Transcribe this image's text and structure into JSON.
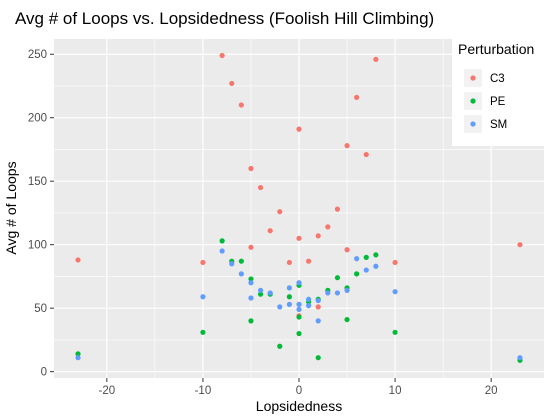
{
  "chart_data": {
    "type": "scatter",
    "title": "Avg # of Loops vs. Lopsidedness (Foolish Hill Climbing)",
    "xlabel": "Lopsidedness",
    "ylabel": "Avg # of Loops",
    "xlim": [
      -25.5,
      25.5
    ],
    "ylim": [
      -5,
      262
    ],
    "x_ticks": [
      -20,
      -10,
      0,
      10,
      20
    ],
    "y_ticks": [
      0,
      50,
      100,
      150,
      200,
      250
    ],
    "grid": true,
    "legend_title": "Perturbation",
    "legend_position": "top-right",
    "colors": {
      "panel": "#ebebeb",
      "grid": "#ffffff"
    },
    "series": [
      {
        "name": "C3",
        "color": "#f8766d",
        "points": [
          [
            -23,
            88
          ],
          [
            -10,
            86
          ],
          [
            -8,
            249
          ],
          [
            -7,
            227
          ],
          [
            -6,
            210
          ],
          [
            -5,
            160
          ],
          [
            -5,
            98
          ],
          [
            -4,
            145
          ],
          [
            -3,
            111
          ],
          [
            -2,
            126
          ],
          [
            -1,
            86
          ],
          [
            0,
            191
          ],
          [
            0,
            105
          ],
          [
            0,
            44
          ],
          [
            1,
            87
          ],
          [
            2,
            107
          ],
          [
            2,
            51
          ],
          [
            3,
            114
          ],
          [
            4,
            128
          ],
          [
            5,
            178
          ],
          [
            5,
            96
          ],
          [
            6,
            216
          ],
          [
            7,
            171
          ],
          [
            8,
            246
          ],
          [
            10,
            86
          ],
          [
            23,
            100
          ]
        ]
      },
      {
        "name": "PE",
        "color": "#00ba38",
        "points": [
          [
            -23,
            14
          ],
          [
            -10,
            31
          ],
          [
            -8,
            103
          ],
          [
            -7,
            87
          ],
          [
            -6,
            87
          ],
          [
            -5,
            73
          ],
          [
            -5,
            40
          ],
          [
            -4,
            61
          ],
          [
            -3,
            61
          ],
          [
            -2,
            20
          ],
          [
            -1,
            59
          ],
          [
            0,
            68
          ],
          [
            0,
            43
          ],
          [
            0,
            30
          ],
          [
            1,
            55
          ],
          [
            2,
            57
          ],
          [
            2,
            11
          ],
          [
            3,
            64
          ],
          [
            4,
            74
          ],
          [
            5,
            66
          ],
          [
            5,
            41
          ],
          [
            6,
            77
          ],
          [
            7,
            90
          ],
          [
            8,
            92
          ],
          [
            10,
            31
          ],
          [
            23,
            9
          ]
        ]
      },
      {
        "name": "SM",
        "color": "#619cff",
        "points": [
          [
            -23,
            11
          ],
          [
            -10,
            59
          ],
          [
            -8,
            95
          ],
          [
            -7,
            85
          ],
          [
            -6,
            77
          ],
          [
            -5,
            70
          ],
          [
            -5,
            58
          ],
          [
            -4,
            64
          ],
          [
            -3,
            62
          ],
          [
            -2,
            51
          ],
          [
            -1,
            53
          ],
          [
            -1,
            66
          ],
          [
            0,
            70
          ],
          [
            0,
            53
          ],
          [
            0,
            49
          ],
          [
            1,
            57
          ],
          [
            1,
            52
          ],
          [
            2,
            40
          ],
          [
            2,
            56
          ],
          [
            3,
            62
          ],
          [
            4,
            62
          ],
          [
            5,
            64
          ],
          [
            6,
            89
          ],
          [
            7,
            80
          ],
          [
            8,
            83
          ],
          [
            10,
            63
          ],
          [
            23,
            11
          ]
        ]
      }
    ]
  }
}
